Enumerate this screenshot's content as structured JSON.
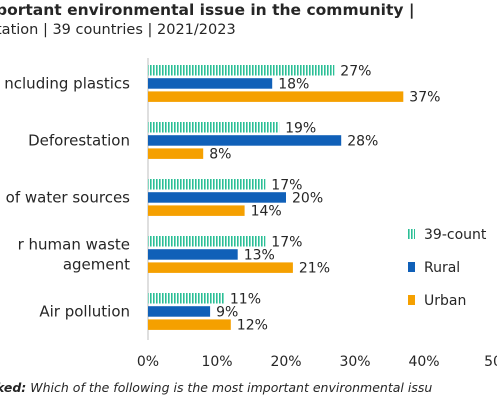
{
  "header": {
    "title": "portant environmental issue in the community |",
    "subtitle": "tation | 39 countries | 2021/2023"
  },
  "footnote": {
    "prefix": "ked:",
    "text": " Which of the following is the most important environmental issu"
  },
  "colors": {
    "39-countries": "#2bbf96",
    "Rural": "#1060b8",
    "Urban": "#f5a000"
  },
  "chart_data": {
    "type": "bar",
    "orientation": "horizontal",
    "categories": [
      "ncluding plastics",
      "Deforestation",
      "of water sources",
      "r human waste|agement",
      "Air pollution"
    ],
    "category_lines": [
      [
        "ncluding plastics"
      ],
      [
        "Deforestation"
      ],
      [
        "of water sources"
      ],
      [
        "r human waste",
        "agement"
      ],
      [
        "Air pollution"
      ]
    ],
    "series": [
      {
        "name": "39-count",
        "values": [
          27,
          19,
          17,
          17,
          11
        ],
        "labels": [
          "27%",
          "19%",
          "17%",
          "17%",
          "11%"
        ]
      },
      {
        "name": "Rural",
        "values": [
          18,
          28,
          20,
          13,
          9
        ],
        "labels": [
          "18%",
          "28%",
          "20%",
          "13%",
          "9%"
        ]
      },
      {
        "name": "Urban",
        "values": [
          37,
          8,
          14,
          21,
          12
        ],
        "labels": [
          "37%",
          "8%",
          "14%",
          "21%",
          "12%"
        ]
      }
    ],
    "xlim": [
      0,
      50
    ],
    "xticks": [
      "0%",
      "10%",
      "20%",
      "30%",
      "40%",
      "50"
    ],
    "grid": false,
    "legend_position": "right"
  }
}
